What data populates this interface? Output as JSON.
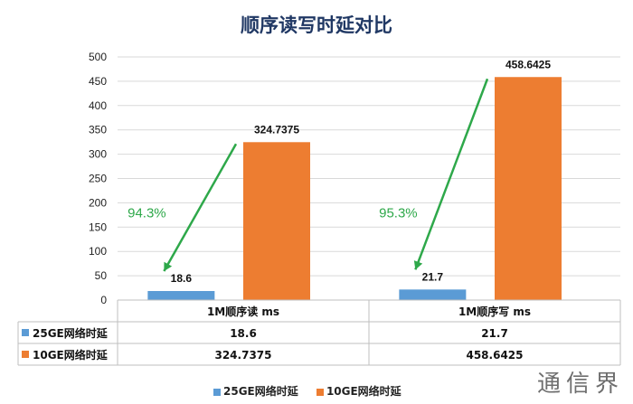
{
  "chart_data": {
    "type": "bar",
    "title": "顺序读写时延对比",
    "categories": [
      "1M顺序读 ms",
      "1M顺序写 ms"
    ],
    "series": [
      {
        "name": "25GE网络时延",
        "values": [
          18.6,
          21.7
        ],
        "labels": [
          "18.6",
          "21.7"
        ],
        "color": "#5b9bd5"
      },
      {
        "name": "10GE网络时延",
        "values": [
          324.7375,
          458.6425
        ],
        "labels": [
          "324.7375",
          "458.6425"
        ],
        "color": "#ed7d31"
      }
    ],
    "ylim": [
      0,
      500
    ],
    "yticks": [
      "0",
      "50",
      "100",
      "150",
      "200",
      "250",
      "300",
      "350",
      "400",
      "450",
      "500"
    ],
    "annotations": [
      "94.3%",
      "95.3%"
    ],
    "annotation_color": "#2ea84a",
    "grid": true,
    "legend": "bottom",
    "data_table": true
  },
  "watermark": "通信界"
}
